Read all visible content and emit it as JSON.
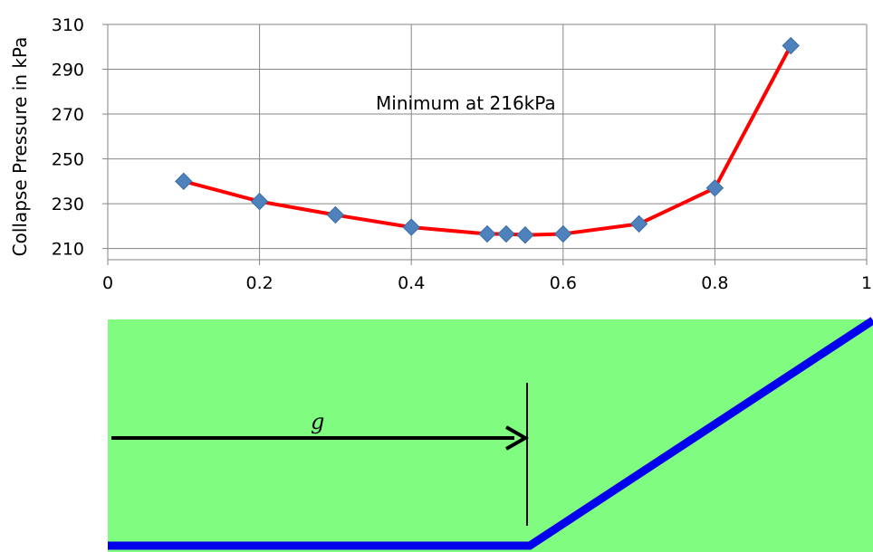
{
  "chart_data": {
    "type": "line",
    "title": "",
    "xlabel": "",
    "ylabel": "Collapse Pressure in kPa",
    "xlim": [
      0,
      1
    ],
    "ylim": [
      205,
      310
    ],
    "x_ticks": [
      "0",
      "0.2",
      "0.4",
      "0.6",
      "0.8",
      "1"
    ],
    "y_ticks": [
      "210",
      "230",
      "250",
      "270",
      "290",
      "310"
    ],
    "grid": true,
    "annotation": "Minimum at 216kPa",
    "line_color": "#ff0000",
    "marker_color": "#4f81bd",
    "series": [
      {
        "x": [
          0.1,
          0.2,
          0.3,
          0.4,
          0.5,
          0.525,
          0.55,
          0.6,
          0.7,
          0.8,
          0.9
        ],
        "y": [
          240,
          231,
          225,
          219.5,
          216.5,
          216.5,
          216,
          216.5,
          221,
          237,
          300.5
        ]
      }
    ]
  },
  "diagram": {
    "label": "g",
    "background_color": "#80fc80",
    "profile_color": "#0000ee",
    "arrow_color": "#000000"
  }
}
